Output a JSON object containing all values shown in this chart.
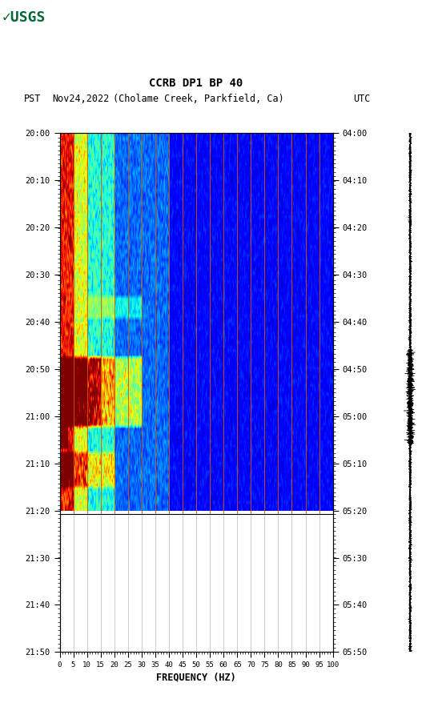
{
  "title_line1": "CCRB DP1 BP 40",
  "title_line2_pst": "PST",
  "title_line2_date": "Nov24,2022",
  "title_line2_loc": "(Cholame Creek, Parkfield, Ca)",
  "title_line2_utc": "UTC",
  "freq_min": 0,
  "freq_max": 100,
  "freq_ticks": [
    0,
    5,
    10,
    15,
    20,
    25,
    30,
    35,
    40,
    45,
    50,
    55,
    60,
    65,
    70,
    75,
    80,
    85,
    90,
    95,
    100
  ],
  "freq_label": "FREQUENCY (HZ)",
  "time_ticks_left": [
    "20:00",
    "20:10",
    "20:20",
    "20:30",
    "20:40",
    "20:50",
    "21:00",
    "21:10",
    "21:20",
    "21:30",
    "21:40",
    "21:50"
  ],
  "time_ticks_right": [
    "04:00",
    "04:10",
    "04:20",
    "04:30",
    "04:40",
    "04:50",
    "05:00",
    "05:10",
    "05:20",
    "05:30",
    "05:40",
    "05:50"
  ],
  "n_time_rows": 120,
  "n_freq_cols": 400,
  "spectrogram_data_rows": 88,
  "orange_line_freqs": [
    5,
    10,
    15,
    20,
    25,
    30,
    35,
    40,
    45,
    50,
    55,
    60,
    65,
    70,
    75,
    80,
    85,
    90,
    95,
    100
  ],
  "background_color": "#ffffff",
  "usgs_color": "#006633",
  "orange_color": "#cc5500",
  "seismogram_color": "#000000"
}
